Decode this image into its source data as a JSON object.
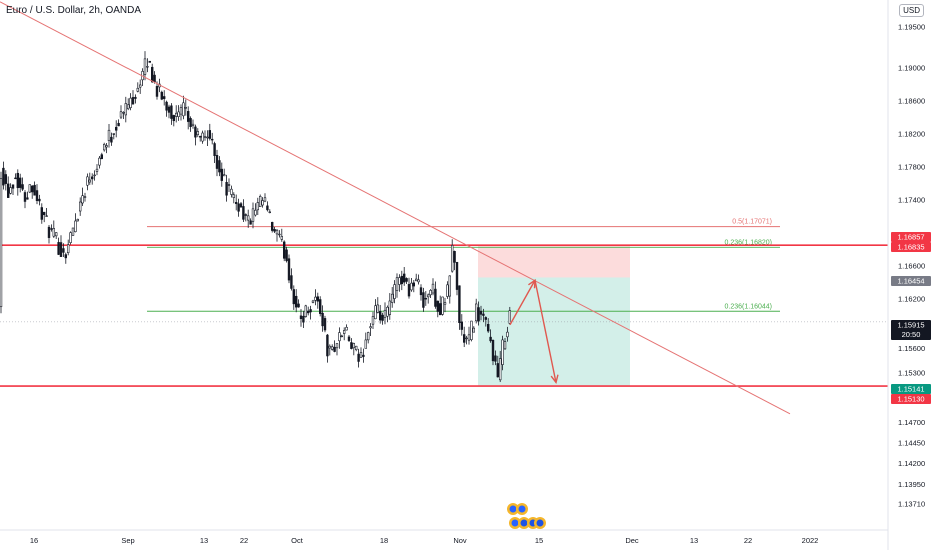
{
  "header": {
    "symbol_title": "Euro / U.S. Dollar, 2h, OANDA",
    "currency": "USD"
  },
  "colors": {
    "candle": "#131722",
    "trendline": "#e57373",
    "support": "#f23645",
    "fib_red": "#e57373",
    "fib_green": "#4caf50",
    "risk_zone": "#fcdcdc",
    "reward_zone": "#d3efe9",
    "arrow": "#e0584f",
    "axis_text": "#131722",
    "label_red": "#f23645",
    "label_green": "#089981",
    "label_gray": "#787b86",
    "label_black": "#131722"
  },
  "chart_data": {
    "type": "candlestick",
    "symbol": "EUR/USD",
    "timeframe": "2h",
    "ylim": [
      1.1345,
      1.197
    ],
    "y_ticks": [
      "1.19500",
      "1.19000",
      "1.18600",
      "1.18200",
      "1.17800",
      "1.17400",
      "1.16600",
      "1.16200",
      "1.15600",
      "1.15300",
      "1.14700",
      "1.14450",
      "1.14200",
      "1.13950",
      "1.13710"
    ],
    "x_ticks": [
      "16",
      "Sep",
      "13",
      "22",
      "Oct",
      "18",
      "Nov",
      "15",
      "Dec",
      "13",
      "22",
      "2022"
    ],
    "price_path": [
      [
        0,
        1.178
      ],
      [
        8,
        1.175
      ],
      [
        16,
        1.177
      ],
      [
        24,
        1.1742
      ],
      [
        32,
        1.176
      ],
      [
        40,
        1.173
      ],
      [
        48,
        1.1705
      ],
      [
        56,
        1.169
      ],
      [
        64,
        1.1672
      ],
      [
        72,
        1.17
      ],
      [
        80,
        1.1735
      ],
      [
        88,
        1.1765
      ],
      [
        96,
        1.178
      ],
      [
        104,
        1.1805
      ],
      [
        112,
        1.182
      ],
      [
        120,
        1.184
      ],
      [
        128,
        1.1855
      ],
      [
        136,
        1.1872
      ],
      [
        142,
        1.189
      ],
      [
        148,
        1.191
      ],
      [
        154,
        1.1882
      ],
      [
        160,
        1.1868
      ],
      [
        168,
        1.1852
      ],
      [
        176,
        1.1838
      ],
      [
        184,
        1.1848
      ],
      [
        192,
        1.1826
      ],
      [
        200,
        1.1812
      ],
      [
        208,
        1.1822
      ],
      [
        216,
        1.179
      ],
      [
        224,
        1.1762
      ],
      [
        232,
        1.1742
      ],
      [
        240,
        1.1732
      ],
      [
        248,
        1.1712
      ],
      [
        256,
        1.1726
      ],
      [
        264,
        1.174
      ],
      [
        272,
        1.1705
      ],
      [
        280,
        1.169
      ],
      [
        286,
        1.1672
      ],
      [
        292,
        1.163
      ],
      [
        300,
        1.1594
      ],
      [
        308,
        1.1608
      ],
      [
        316,
        1.1622
      ],
      [
        322,
        1.1598
      ],
      [
        328,
        1.1552
      ],
      [
        336,
        1.1565
      ],
      [
        344,
        1.1582
      ],
      [
        352,
        1.156
      ],
      [
        360,
        1.1544
      ],
      [
        368,
        1.158
      ],
      [
        376,
        1.1604
      ],
      [
        384,
        1.1592
      ],
      [
        392,
        1.162
      ],
      [
        400,
        1.165
      ],
      [
        408,
        1.1632
      ],
      [
        416,
        1.1642
      ],
      [
        424,
        1.1618
      ],
      [
        432,
        1.1632
      ],
      [
        440,
        1.1604
      ],
      [
        448,
        1.1628
      ],
      [
        452,
        1.1682
      ],
      [
        456,
        1.165
      ],
      [
        460,
        1.158
      ],
      [
        468,
        1.1565
      ],
      [
        476,
        1.1606
      ],
      [
        484,
        1.1592
      ],
      [
        492,
        1.156
      ],
      [
        498,
        1.1522
      ],
      [
        504,
        1.1572
      ],
      [
        512,
        1.1612
      ]
    ],
    "levels": [
      {
        "label": "0.5(1.17071)",
        "price": 1.17071,
        "x_start": 147,
        "x_end": 780,
        "color": "fib_red"
      },
      {
        "label": "0.236(1.16820)",
        "price": 1.1682,
        "x_start": 147,
        "x_end": 780,
        "color": "fib_green"
      },
      {
        "label": "0.236(1.16044)",
        "price": 1.16044,
        "x_start": 147,
        "x_end": 780,
        "color": "fib_green"
      }
    ],
    "horizontal_lines": [
      {
        "name": "resistance",
        "price": 1.16846
      },
      {
        "name": "support",
        "price": 1.15136
      }
    ],
    "trendline": {
      "start": [
        0,
        1.198
      ],
      "end": [
        790,
        1.148
      ]
    },
    "risk_reward": {
      "x_start": 478,
      "x_end": 630,
      "stop": 1.16835,
      "entry": 1.16454,
      "target": 1.15141
    },
    "projection_arrows": [
      {
        "from": [
          510,
          1.1588
        ],
        "to": [
          535,
          1.1642
        ]
      },
      {
        "from": [
          535,
          1.1642
        ],
        "to": [
          556,
          1.1518
        ]
      }
    ],
    "price_labels": [
      {
        "text": "1.16857",
        "price": 1.16857,
        "style": "red"
      },
      {
        "text": "1.16835",
        "price": 1.16835,
        "style": "red"
      },
      {
        "text": "1.16454",
        "price": 1.16454,
        "style": "gray"
      },
      {
        "text": "1.15915",
        "price": 1.15915,
        "style": "black",
        "sub": "20:50"
      },
      {
        "text": "1.15141",
        "price": 1.15141,
        "style": "green"
      },
      {
        "text": "1.15130",
        "price": 1.1513,
        "style": "red"
      }
    ],
    "current_price": 1.15915,
    "grid": false
  }
}
